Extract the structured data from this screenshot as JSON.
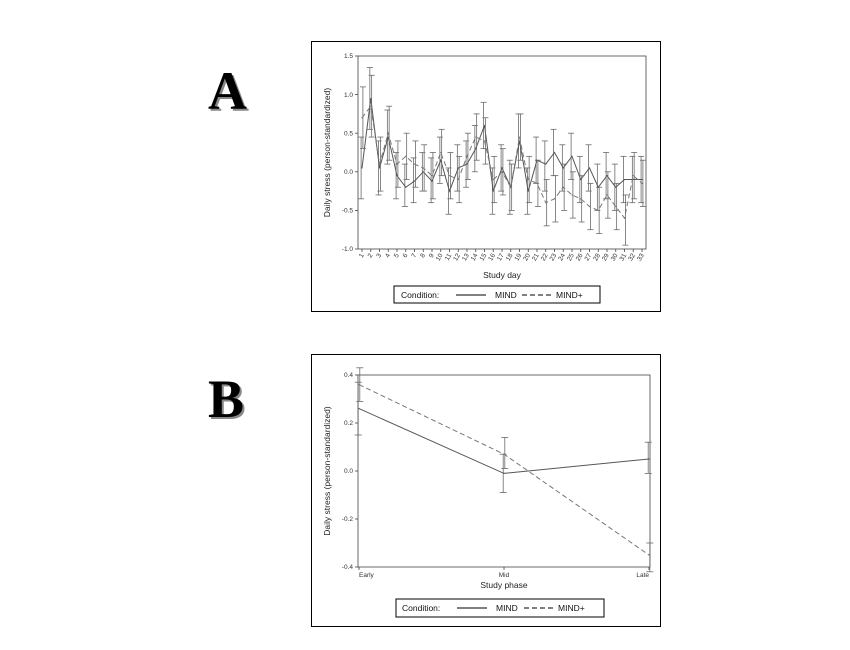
{
  "panels": {
    "a_label": "A",
    "b_label": "B"
  },
  "legend": {
    "title": "Condition:",
    "series1": "MIND",
    "series2": "MIND+"
  },
  "colors": {
    "series1": "#555555",
    "series2": "#777777",
    "errorbar": "#6a6a6a"
  },
  "chart_data": [
    {
      "type": "line",
      "xlabel": "Study day",
      "ylabel": "Daily stress (person-standardized)",
      "ylim": [
        -1.0,
        1.5
      ],
      "yticks": [
        "1.5",
        "1.0",
        "0.5",
        "0.0",
        "-0.5",
        "-1.0"
      ],
      "x": [
        1,
        2,
        3,
        4,
        5,
        6,
        7,
        8,
        9,
        10,
        11,
        12,
        13,
        14,
        15,
        16,
        17,
        18,
        19,
        20,
        21,
        22,
        23,
        24,
        25,
        26,
        27,
        28,
        29,
        30,
        31,
        32,
        33
      ],
      "xticks": [
        "1",
        "2",
        "3",
        "4",
        "5",
        "6",
        "7",
        "8",
        "9",
        "10",
        "11",
        "12",
        "13",
        "14",
        "15",
        "16",
        "17",
        "18",
        "19",
        "20",
        "21",
        "22",
        "23",
        "24",
        "25",
        "26",
        "27",
        "28",
        "29",
        "30",
        "31",
        "32",
        "33"
      ],
      "series": [
        {
          "name": "MIND",
          "style": "solid",
          "values": [
            0.05,
            0.95,
            0.05,
            0.45,
            -0.05,
            -0.2,
            -0.12,
            0.0,
            -0.12,
            0.15,
            -0.25,
            0.05,
            0.1,
            0.3,
            0.6,
            -0.25,
            0.05,
            -0.2,
            0.4,
            -0.25,
            0.15,
            0.1,
            0.25,
            0.05,
            0.2,
            -0.1,
            0.05,
            -0.2,
            -0.05,
            -0.2,
            -0.1,
            -0.1,
            -0.1
          ],
          "err_lo": [
            -0.35,
            0.55,
            -0.3,
            0.1,
            -0.35,
            -0.45,
            -0.4,
            -0.25,
            -0.4,
            -0.15,
            -0.55,
            -0.25,
            -0.2,
            0.0,
            0.3,
            -0.55,
            -0.25,
            -0.55,
            0.05,
            -0.55,
            -0.15,
            -0.25,
            -0.05,
            -0.25,
            -0.1,
            -0.4,
            -0.25,
            -0.5,
            -0.35,
            -0.5,
            -0.4,
            -0.4,
            -0.4
          ],
          "err_hi": [
            0.45,
            1.35,
            0.4,
            0.8,
            0.25,
            0.1,
            0.18,
            0.25,
            0.18,
            0.45,
            0.05,
            0.35,
            0.4,
            0.6,
            0.9,
            0.05,
            0.35,
            0.15,
            0.75,
            0.05,
            0.45,
            0.4,
            0.55,
            0.35,
            0.5,
            0.2,
            0.35,
            0.1,
            0.25,
            0.1,
            0.2,
            0.2,
            0.2
          ]
        },
        {
          "name": "MIND+",
          "style": "dashed",
          "values": [
            0.7,
            0.85,
            0.1,
            0.5,
            0.1,
            0.2,
            0.1,
            0.05,
            -0.05,
            0.25,
            -0.05,
            -0.1,
            0.2,
            0.45,
            0.4,
            -0.1,
            0.0,
            -0.2,
            0.45,
            -0.1,
            -0.15,
            -0.4,
            -0.35,
            -0.2,
            -0.3,
            -0.35,
            -0.45,
            -0.5,
            -0.3,
            -0.45,
            -0.6,
            -0.05,
            -0.15
          ],
          "err_lo": [
            0.3,
            0.45,
            -0.25,
            0.15,
            -0.2,
            -0.1,
            -0.2,
            -0.25,
            -0.35,
            -0.05,
            -0.35,
            -0.4,
            -0.1,
            0.15,
            0.1,
            -0.4,
            -0.3,
            -0.5,
            0.15,
            -0.4,
            -0.45,
            -0.7,
            -0.65,
            -0.5,
            -0.6,
            -0.65,
            -0.75,
            -0.8,
            -0.6,
            -0.75,
            -0.95,
            -0.35,
            -0.45
          ],
          "err_hi": [
            1.1,
            1.25,
            0.45,
            0.85,
            0.4,
            0.5,
            0.4,
            0.35,
            0.25,
            0.55,
            0.25,
            0.2,
            0.5,
            0.75,
            0.7,
            0.2,
            0.3,
            0.1,
            0.75,
            0.2,
            0.15,
            -0.1,
            -0.05,
            0.1,
            0.0,
            -0.05,
            -0.15,
            -0.2,
            0.0,
            -0.15,
            -0.3,
            0.25,
            0.15
          ]
        }
      ]
    },
    {
      "type": "line",
      "xlabel": "Study phase",
      "ylabel": "Daily stress (person-standardized)",
      "ylim": [
        -0.4,
        0.4
      ],
      "yticks": [
        "0.4",
        "0.2",
        "0.0",
        "-0.2",
        "-0.4"
      ],
      "categories": [
        "Early",
        "Mid",
        "Late"
      ],
      "series": [
        {
          "name": "MIND",
          "style": "solid",
          "values": [
            0.26,
            -0.01,
            0.05
          ],
          "err_lo": [
            0.15,
            -0.09,
            -0.01
          ],
          "err_hi": [
            0.37,
            0.07,
            0.12
          ]
        },
        {
          "name": "MIND+",
          "style": "dashed",
          "values": [
            0.36,
            0.07,
            -0.35
          ],
          "err_lo": [
            0.29,
            0.01,
            -0.42
          ],
          "err_hi": [
            0.43,
            0.14,
            -0.3
          ]
        }
      ]
    }
  ]
}
